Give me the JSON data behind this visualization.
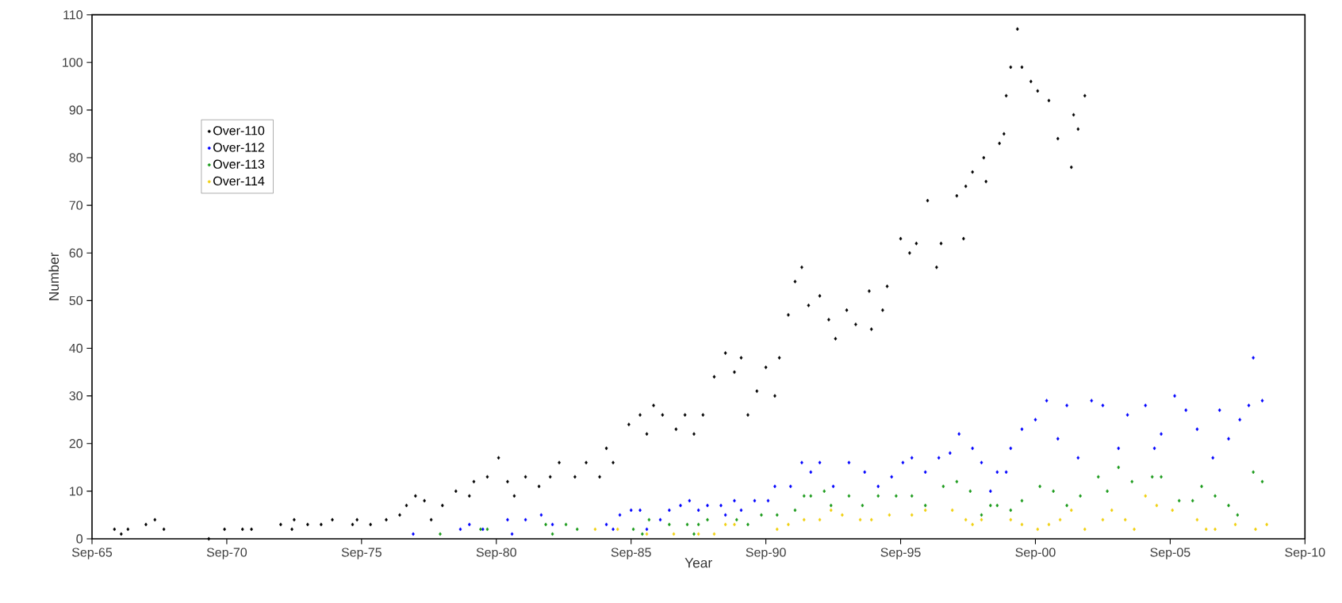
{
  "chart_data": {
    "type": "scatter",
    "xlabel": "Year",
    "ylabel": "Number",
    "xlim": [
      "1965-09",
      "2010-09"
    ],
    "ylim": [
      0,
      110
    ],
    "xticks": [
      {
        "value": "1965-09",
        "label": "Sep-65"
      },
      {
        "value": "1970-09",
        "label": "Sep-70"
      },
      {
        "value": "1975-09",
        "label": "Sep-75"
      },
      {
        "value": "1980-09",
        "label": "Sep-80"
      },
      {
        "value": "1985-09",
        "label": "Sep-85"
      },
      {
        "value": "1990-09",
        "label": "Sep-90"
      },
      {
        "value": "1995-09",
        "label": "Sep-95"
      },
      {
        "value": "2000-09",
        "label": "Sep-00"
      },
      {
        "value": "2005-09",
        "label": "Sep-05"
      },
      {
        "value": "2010-09",
        "label": "Sep-10"
      }
    ],
    "yticks": [
      0,
      10,
      20,
      30,
      40,
      50,
      60,
      70,
      80,
      90,
      100,
      110
    ],
    "legend": "top left",
    "marker": "diamond",
    "series": [
      {
        "name": "Over-110",
        "color": "#000000",
        "x": [
          "1966-07",
          "1966-10",
          "1967-01",
          "1967-09",
          "1968-01",
          "1968-05",
          "1970-01",
          "1970-08",
          "1971-04",
          "1971-08",
          "1972-09",
          "1973-02",
          "1973-03",
          "1973-09",
          "1974-03",
          "1974-08",
          "1975-05",
          "1975-07",
          "1976-01",
          "1976-08",
          "1977-02",
          "1977-05",
          "1977-09",
          "1978-01",
          "1978-04",
          "1978-09",
          "1979-03",
          "1979-09",
          "1979-11",
          "1980-05",
          "1980-10",
          "1981-02",
          "1981-05",
          "1981-10",
          "1982-04",
          "1982-09",
          "1983-01",
          "1983-08",
          "1984-01",
          "1984-07",
          "1984-10",
          "1985-01",
          "1985-08",
          "1986-01",
          "1986-04",
          "1986-07",
          "1986-11",
          "1987-05",
          "1987-09",
          "1988-01",
          "1988-05",
          "1988-10",
          "1989-03",
          "1989-07",
          "1989-10",
          "1990-01",
          "1990-05",
          "1990-09",
          "1991-01",
          "1991-03",
          "1991-07",
          "1991-10",
          "1992-01",
          "1992-04",
          "1992-09",
          "1993-01",
          "1993-04",
          "1993-09",
          "1994-01",
          "1994-07",
          "1994-08",
          "1995-01",
          "1995-03",
          "1995-09",
          "1996-01",
          "1996-04",
          "1996-09",
          "1997-01",
          "1997-03",
          "1997-10",
          "1998-01",
          "1998-02",
          "1998-05",
          "1998-10",
          "1998-11",
          "1999-05",
          "1999-07",
          "1999-08",
          "1999-10",
          "2000-01",
          "2000-03",
          "2000-07",
          "2000-10",
          "2001-03",
          "2001-07",
          "2002-01",
          "2002-02",
          "2002-04",
          "2002-07"
        ],
        "values": [
          2,
          1,
          2,
          3,
          4,
          2,
          0,
          2,
          2,
          2,
          3,
          2,
          4,
          3,
          3,
          4,
          3,
          4,
          3,
          4,
          5,
          7,
          9,
          8,
          4,
          7,
          10,
          9,
          12,
          13,
          17,
          12,
          9,
          13,
          11,
          13,
          16,
          13,
          16,
          13,
          19,
          16,
          24,
          26,
          22,
          28,
          26,
          23,
          26,
          22,
          26,
          34,
          39,
          35,
          38,
          26,
          31,
          36,
          30,
          38,
          47,
          54,
          57,
          49,
          51,
          46,
          42,
          48,
          45,
          52,
          44,
          48,
          53,
          63,
          60,
          62,
          71,
          57,
          62,
          72,
          63,
          74,
          77,
          80,
          75,
          83,
          85,
          93,
          99,
          107,
          99,
          96,
          94,
          92,
          84,
          78,
          89,
          86,
          93
        ]
      },
      {
        "name": "Over-112",
        "color": "#0000ff",
        "x": [
          "1977-08",
          "1979-05",
          "1979-09",
          "1980-03",
          "1981-02",
          "1981-04",
          "1981-10",
          "1982-05",
          "1982-10",
          "1984-10",
          "1985-01",
          "1985-04",
          "1985-09",
          "1986-01",
          "1986-04",
          "1986-10",
          "1987-02",
          "1987-07",
          "1987-11",
          "1988-03",
          "1988-07",
          "1989-01",
          "1989-03",
          "1989-07",
          "1989-10",
          "1990-04",
          "1990-10",
          "1991-01",
          "1991-08",
          "1992-01",
          "1992-05",
          "1992-09",
          "1993-03",
          "1993-10",
          "1994-05",
          "1994-11",
          "1995-05",
          "1995-10",
          "1996-02",
          "1996-08",
          "1997-02",
          "1997-07",
          "1997-11",
          "1998-05",
          "1998-09",
          "1999-01",
          "1999-04",
          "1999-08",
          "1999-10",
          "2000-03",
          "2000-09",
          "2001-02",
          "2001-07",
          "2001-11",
          "2002-04",
          "2002-10",
          "2003-03",
          "2003-10",
          "2004-02",
          "2004-10",
          "2005-02",
          "2005-05",
          "2005-11",
          "2006-04",
          "2006-09",
          "2007-04",
          "2007-07",
          "2007-11",
          "2008-04",
          "2008-08",
          "2008-10",
          "2009-02"
        ],
        "values": [
          1,
          2,
          3,
          2,
          4,
          1,
          4,
          5,
          3,
          3,
          2,
          5,
          6,
          6,
          2,
          4,
          6,
          7,
          8,
          6,
          7,
          7,
          5,
          8,
          6,
          8,
          8,
          11,
          11,
          16,
          14,
          16,
          11,
          16,
          14,
          11,
          13,
          16,
          17,
          14,
          17,
          18,
          22,
          19,
          16,
          10,
          14,
          14,
          19,
          23,
          25,
          29,
          21,
          28,
          17,
          29,
          28,
          19,
          26,
          28,
          19,
          22,
          30,
          27,
          23,
          17,
          27,
          21,
          25,
          28,
          38,
          29
        ]
      },
      {
        "name": "Over-113",
        "color": "#1a9a1a",
        "x": [
          "1978-08",
          "1980-02",
          "1980-05",
          "1982-07",
          "1982-10",
          "1983-04",
          "1983-09",
          "1985-10",
          "1986-02",
          "1986-05",
          "1987-02",
          "1987-10",
          "1988-01",
          "1988-03",
          "1988-07",
          "1989-08",
          "1990-01",
          "1990-07",
          "1991-02",
          "1991-10",
          "1992-02",
          "1992-05",
          "1992-11",
          "1993-02",
          "1993-10",
          "1994-04",
          "1994-11",
          "1995-07",
          "1996-02",
          "1996-08",
          "1997-04",
          "1997-10",
          "1998-04",
          "1998-09",
          "1999-01",
          "1999-04",
          "1999-10",
          "2000-03",
          "2000-11",
          "2001-05",
          "2001-11",
          "2002-05",
          "2003-01",
          "2003-05",
          "2003-10",
          "2004-04",
          "2005-01",
          "2005-05",
          "2006-01",
          "2006-07",
          "2006-11",
          "2007-05",
          "2007-11",
          "2008-03",
          "2008-10",
          "2009-02"
        ],
        "values": [
          1,
          2,
          2,
          3,
          1,
          3,
          2,
          2,
          1,
          4,
          3,
          3,
          1,
          3,
          4,
          4,
          3,
          5,
          5,
          6,
          9,
          9,
          10,
          7,
          9,
          7,
          9,
          9,
          9,
          7,
          11,
          12,
          10,
          5,
          7,
          7,
          6,
          8,
          11,
          10,
          7,
          9,
          13,
          10,
          15,
          12,
          13,
          13,
          8,
          8,
          11,
          9,
          7,
          5,
          14,
          12
        ]
      },
      {
        "name": "Over-114",
        "color": "#f0d010",
        "x": [
          "1984-05",
          "1985-03",
          "1986-04",
          "1987-04",
          "1988-03",
          "1988-10",
          "1989-03",
          "1989-07",
          "1991-02",
          "1991-07",
          "1992-02",
          "1992-09",
          "1993-02",
          "1993-07",
          "1994-03",
          "1994-08",
          "1995-04",
          "1996-02",
          "1996-08",
          "1997-08",
          "1998-02",
          "1998-05",
          "1998-09",
          "1999-10",
          "2000-03",
          "2000-10",
          "2001-03",
          "2001-08",
          "2002-01",
          "2002-07",
          "2003-03",
          "2003-07",
          "2004-01",
          "2004-05",
          "2004-10",
          "2005-03",
          "2005-10",
          "2006-09",
          "2007-01",
          "2007-05",
          "2008-02",
          "2008-11",
          "2009-04"
        ],
        "values": [
          2,
          2,
          1,
          1,
          1,
          1,
          3,
          3,
          2,
          3,
          4,
          4,
          6,
          5,
          4,
          4,
          5,
          5,
          6,
          6,
          4,
          3,
          4,
          4,
          3,
          2,
          3,
          4,
          6,
          2,
          4,
          6,
          4,
          2,
          9,
          7,
          6,
          4,
          2,
          2,
          3,
          2,
          3
        ]
      }
    ]
  }
}
